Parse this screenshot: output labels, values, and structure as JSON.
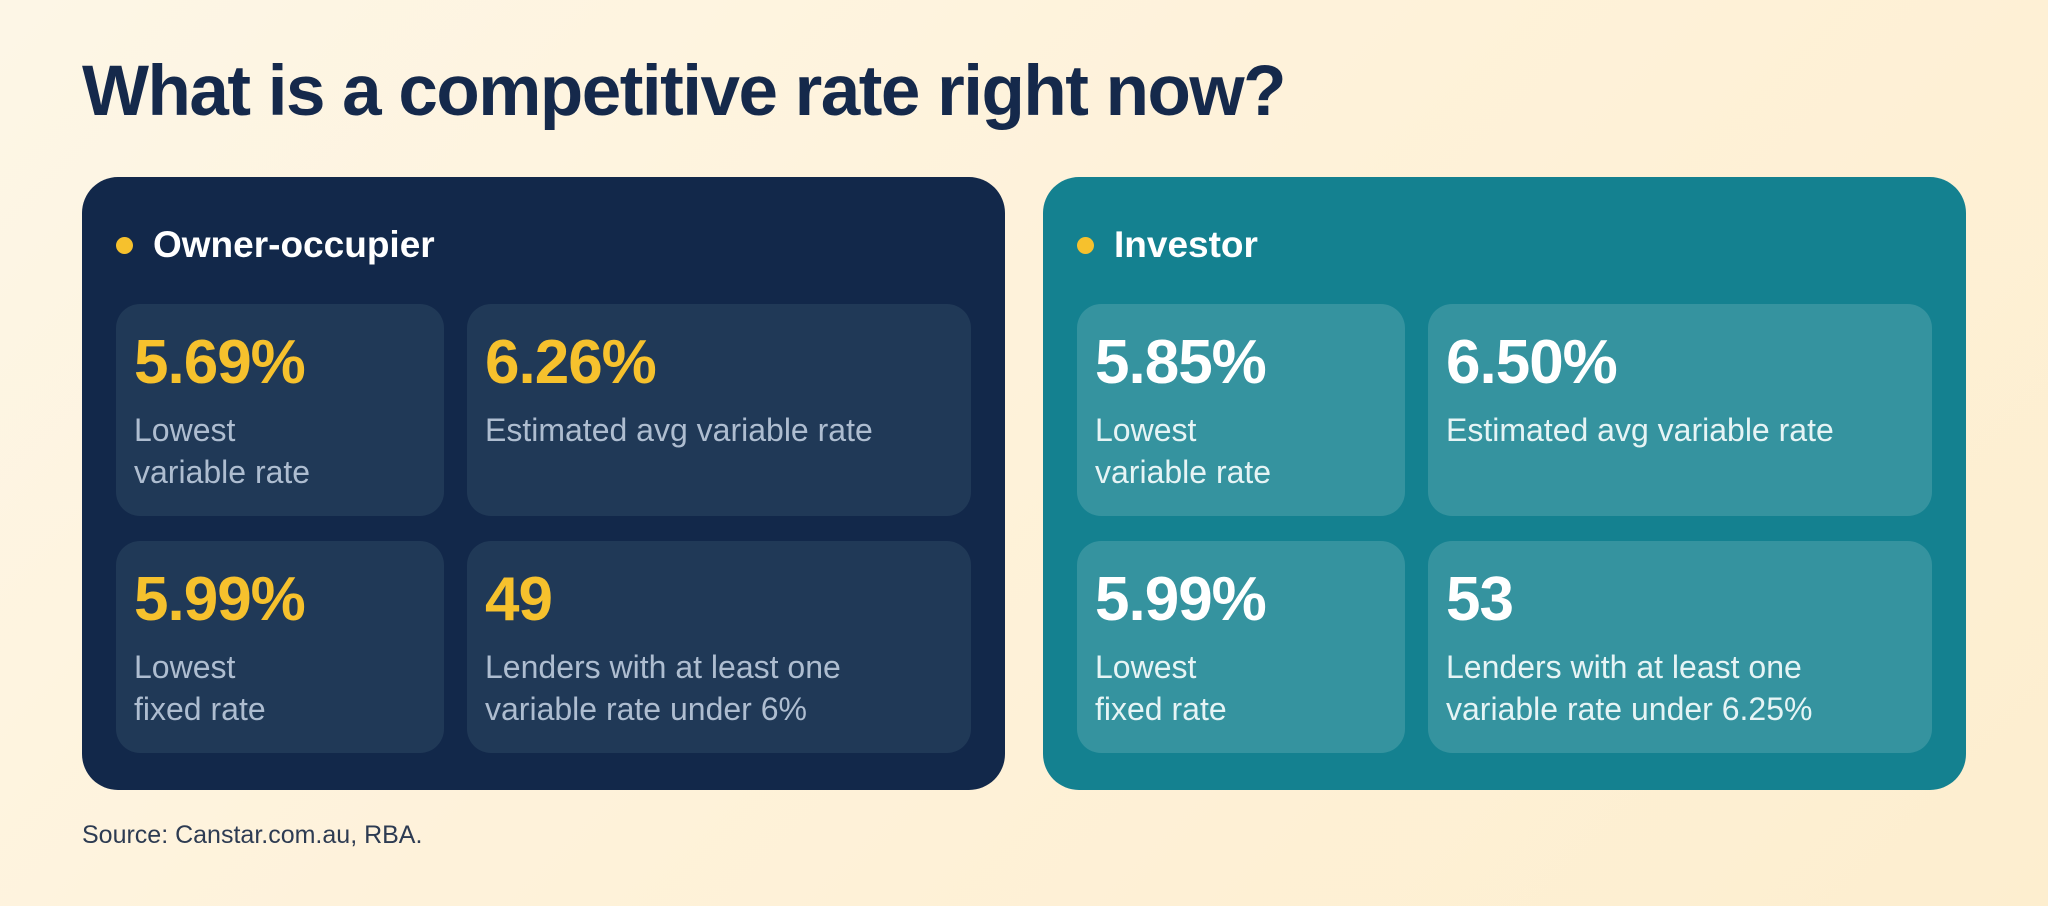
{
  "title": "What is a competitive rate right now?",
  "colors": {
    "background": "#fdf3df",
    "title_text": "#15294b",
    "owner_panel": "#12284a",
    "owner_card": "#203957",
    "investor_panel": "#148190",
    "investor_card": "#35939f",
    "accent_yellow": "#f6c12d",
    "white": "#ffffff"
  },
  "panels": [
    {
      "title": "Owner-occupier",
      "bullet_icon": "yellow-dot",
      "stats": [
        {
          "value": "5.69%",
          "label": "Lowest\nvariable rate"
        },
        {
          "value": "6.26%",
          "label": "Estimated avg variable rate"
        },
        {
          "value": "5.99%",
          "label": "Lowest\nfixed rate"
        },
        {
          "value": "49",
          "label": "Lenders with at least one\nvariable rate under 6%"
        }
      ]
    },
    {
      "title": "Investor",
      "bullet_icon": "yellow-dot",
      "stats": [
        {
          "value": "5.85%",
          "label": "Lowest\nvariable rate"
        },
        {
          "value": "6.50%",
          "label": "Estimated avg variable rate"
        },
        {
          "value": "5.99%",
          "label": "Lowest\nfixed rate"
        },
        {
          "value": "53",
          "label": "Lenders with at least one\nvariable rate under 6.25%"
        }
      ]
    }
  ],
  "source": "Source: Canstar.com.au, RBA."
}
